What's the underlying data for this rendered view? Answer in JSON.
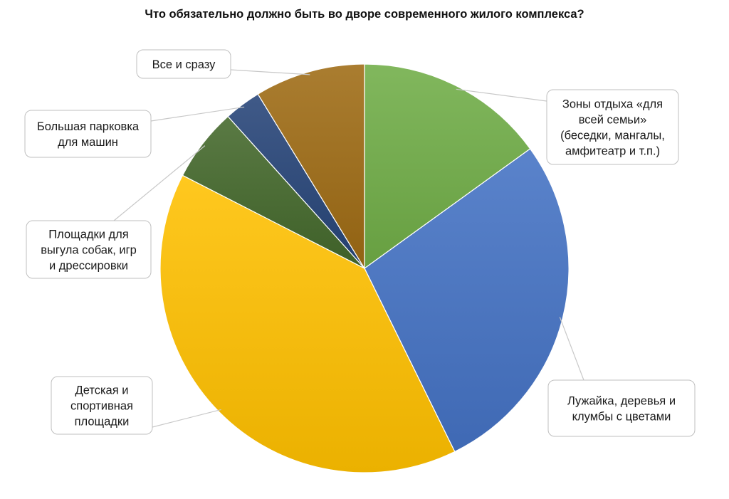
{
  "chart_data": {
    "type": "pie",
    "title": "Что обязательно должно быть во дворе современного жилого комплекса?",
    "start_angle_deg": 0,
    "direction": "clockwise",
    "slices": [
      {
        "label": "Зоны отдыха «для всей семьи» (беседки, мангалы, амфитеатр и т.п.)",
        "value": 15.5,
        "color": "#70AD47"
      },
      {
        "label": "Лужайка, деревья и клумбы с цветами",
        "value": 28.5,
        "color": "#4472C4"
      },
      {
        "label": "Детская и спортивная площадки",
        "value": 41.0,
        "color": "#FFC000"
      },
      {
        "label": "Площадки для выгула собак, игр и дрессировки",
        "value": 6.0,
        "color": "#43682B"
      },
      {
        "label": "Большая парковка для машин",
        "value": 3.0,
        "color": "#264478"
      },
      {
        "label": "Все и сразу",
        "value": 9.0,
        "color": "#9E6B14"
      }
    ],
    "legend": "none",
    "data_labels": "callout boxes with leader lines"
  }
}
